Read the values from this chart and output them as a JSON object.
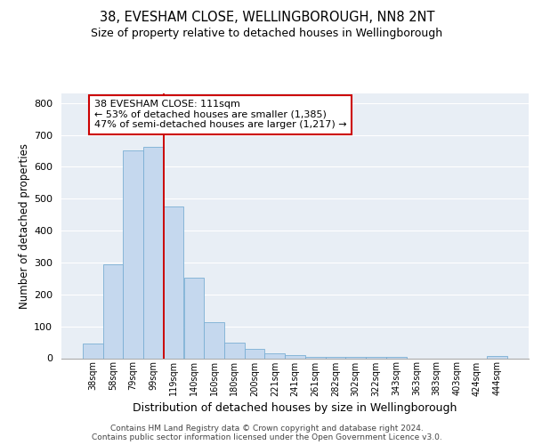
{
  "title1": "38, EVESHAM CLOSE, WELLINGBOROUGH, NN8 2NT",
  "title2": "Size of property relative to detached houses in Wellingborough",
  "xlabel": "Distribution of detached houses by size in Wellingborough",
  "ylabel": "Number of detached properties",
  "categories": [
    "38sqm",
    "58sqm",
    "79sqm",
    "99sqm",
    "119sqm",
    "140sqm",
    "160sqm",
    "180sqm",
    "200sqm",
    "221sqm",
    "241sqm",
    "261sqm",
    "282sqm",
    "302sqm",
    "322sqm",
    "343sqm",
    "363sqm",
    "383sqm",
    "403sqm",
    "424sqm",
    "444sqm"
  ],
  "values": [
    47,
    293,
    651,
    663,
    475,
    253,
    113,
    48,
    28,
    15,
    10,
    5,
    3,
    4,
    3,
    3,
    0,
    0,
    0,
    0,
    7
  ],
  "bar_color": "#c5d8ee",
  "bar_edge_color": "#7aafd4",
  "red_line_x": 3.5,
  "annotation_text": "38 EVESHAM CLOSE: 111sqm\n← 53% of detached houses are smaller (1,385)\n47% of semi-detached houses are larger (1,217) →",
  "annotation_box_facecolor": "#ffffff",
  "annotation_box_edgecolor": "#cc0000",
  "ylim": [
    0,
    830
  ],
  "yticks": [
    0,
    100,
    200,
    300,
    400,
    500,
    600,
    700,
    800
  ],
  "bg_color": "#e8eef5",
  "grid_color": "#ffffff",
  "footer1": "Contains HM Land Registry data © Crown copyright and database right 2024.",
  "footer2": "Contains public sector information licensed under the Open Government Licence v3.0.",
  "title1_fontsize": 10.5,
  "title2_fontsize": 9,
  "ylabel_fontsize": 8.5,
  "xlabel_fontsize": 9,
  "tick_fontsize": 8,
  "xtick_fontsize": 7,
  "annotation_fontsize": 8,
  "footer_fontsize": 6.5
}
